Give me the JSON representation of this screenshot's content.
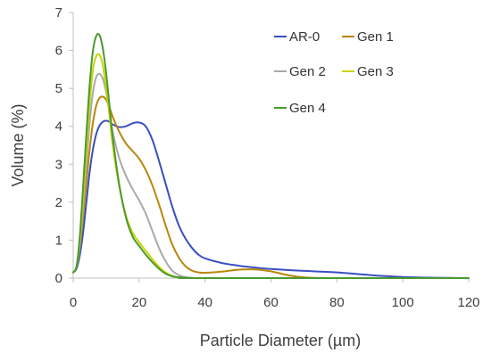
{
  "chart_data": {
    "type": "line",
    "title": "",
    "xlabel": "Particle Diameter (µm)",
    "ylabel": "Volume (%)",
    "xlim": [
      0,
      120
    ],
    "ylim": [
      0,
      7
    ],
    "xticks": [
      0,
      20,
      40,
      60,
      80,
      100,
      120
    ],
    "yticks": [
      0,
      1,
      2,
      3,
      4,
      5,
      6,
      7
    ],
    "grid": false,
    "legend_position": "top-right",
    "series": [
      {
        "name": "AR-0",
        "color": "#3A4FBF",
        "x": [
          0,
          1,
          2,
          3,
          4,
          5,
          6,
          7,
          8,
          9,
          10,
          11,
          12,
          14,
          16,
          18,
          20,
          22,
          24,
          26,
          28,
          30,
          32,
          34,
          36,
          38,
          40,
          45,
          50,
          55,
          60,
          70,
          80,
          90,
          100,
          110,
          120
        ],
        "y": [
          0.15,
          0.25,
          0.6,
          1.2,
          2.0,
          2.8,
          3.4,
          3.8,
          4.02,
          4.12,
          4.15,
          4.12,
          4.05,
          3.98,
          4.0,
          4.08,
          4.1,
          4.0,
          3.65,
          3.1,
          2.5,
          1.9,
          1.4,
          1.05,
          0.8,
          0.62,
          0.52,
          0.4,
          0.33,
          0.28,
          0.24,
          0.19,
          0.15,
          0.08,
          0.03,
          0.01,
          0.0
        ]
      },
      {
        "name": "Gen 1",
        "color": "#B8860B",
        "x": [
          0,
          1,
          2,
          3,
          4,
          5,
          6,
          7,
          8,
          9,
          10,
          11,
          12,
          14,
          16,
          18,
          20,
          22,
          24,
          26,
          28,
          30,
          32,
          34,
          36,
          38,
          40,
          45,
          50,
          55,
          60,
          65,
          70,
          80,
          120
        ],
        "y": [
          0.15,
          0.3,
          0.8,
          1.6,
          2.5,
          3.4,
          4.1,
          4.55,
          4.75,
          4.78,
          4.7,
          4.5,
          4.25,
          3.85,
          3.55,
          3.35,
          3.15,
          2.85,
          2.45,
          1.95,
          1.4,
          0.9,
          0.55,
          0.32,
          0.2,
          0.15,
          0.14,
          0.17,
          0.22,
          0.23,
          0.18,
          0.08,
          0.02,
          0.0,
          0.0
        ]
      },
      {
        "name": "Gen 2",
        "color": "#A9A9A9",
        "x": [
          0,
          1,
          2,
          3,
          4,
          5,
          6,
          7,
          8,
          9,
          10,
          11,
          12,
          14,
          16,
          18,
          20,
          22,
          24,
          26,
          28,
          30,
          32,
          34,
          36,
          40,
          120
        ],
        "y": [
          0.15,
          0.3,
          0.9,
          1.9,
          3.0,
          4.1,
          4.9,
          5.3,
          5.38,
          5.25,
          4.9,
          4.4,
          3.85,
          3.15,
          2.7,
          2.35,
          2.05,
          1.7,
          1.25,
          0.8,
          0.45,
          0.2,
          0.08,
          0.03,
          0.01,
          0.0,
          0.0
        ]
      },
      {
        "name": "Gen 3",
        "color": "#C8D400",
        "x": [
          0,
          1,
          2,
          3,
          4,
          5,
          6,
          7,
          8,
          9,
          10,
          11,
          12,
          14,
          16,
          18,
          20,
          22,
          24,
          26,
          28,
          30,
          32,
          34,
          40,
          120
        ],
        "y": [
          0.15,
          0.3,
          1.0,
          2.1,
          3.4,
          4.6,
          5.5,
          5.85,
          5.88,
          5.6,
          5.0,
          4.3,
          3.5,
          2.4,
          1.65,
          1.2,
          0.95,
          0.72,
          0.5,
          0.3,
          0.15,
          0.06,
          0.02,
          0.01,
          0.0,
          0.0
        ]
      },
      {
        "name": "Gen 4",
        "color": "#4A9A2E",
        "x": [
          0,
          1,
          2,
          3,
          4,
          5,
          6,
          7,
          8,
          9,
          10,
          11,
          12,
          14,
          16,
          18,
          20,
          22,
          24,
          26,
          28,
          30,
          32,
          34,
          40,
          120
        ],
        "y": [
          0.15,
          0.3,
          1.1,
          2.4,
          3.8,
          5.1,
          6.0,
          6.38,
          6.4,
          6.05,
          5.4,
          4.55,
          3.7,
          2.45,
          1.6,
          1.1,
          0.85,
          0.62,
          0.42,
          0.25,
          0.12,
          0.05,
          0.02,
          0.01,
          0.0,
          0.0
        ]
      }
    ]
  }
}
